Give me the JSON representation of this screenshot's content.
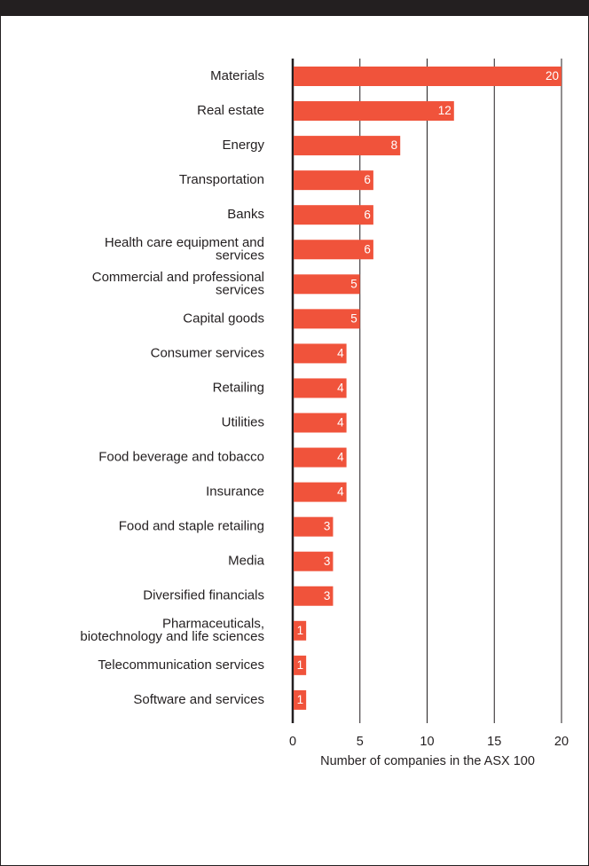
{
  "colors": {
    "bar": "#f0533b",
    "frame": "#231f20",
    "grid": "#231f20",
    "text": "#231f20"
  },
  "chart_data": {
    "type": "bar",
    "orientation": "horizontal",
    "title": "",
    "xlabel": "Number of companies in the ASX 100",
    "ylabel": "",
    "xlim": [
      0,
      20
    ],
    "xticks": [
      0,
      5,
      10,
      15,
      20
    ],
    "grid": true,
    "categories": [
      "Materials",
      "Real estate",
      "Energy",
      "Transportation",
      "Banks",
      "Health care equipment and services",
      "Commercial and professional services",
      "Capital goods",
      "Consumer services",
      "Retailing",
      "Utilities",
      "Food beverage and tobacco",
      "Insurance",
      "Food and staple retailing",
      "Media",
      "Diversified financials",
      "Pharmaceuticals, biotechnology and life sciences",
      "Telecommunication services",
      "Software and services"
    ],
    "values": [
      20,
      12,
      8,
      6,
      6,
      6,
      5,
      5,
      4,
      4,
      4,
      4,
      4,
      3,
      3,
      3,
      1,
      1,
      1
    ]
  }
}
